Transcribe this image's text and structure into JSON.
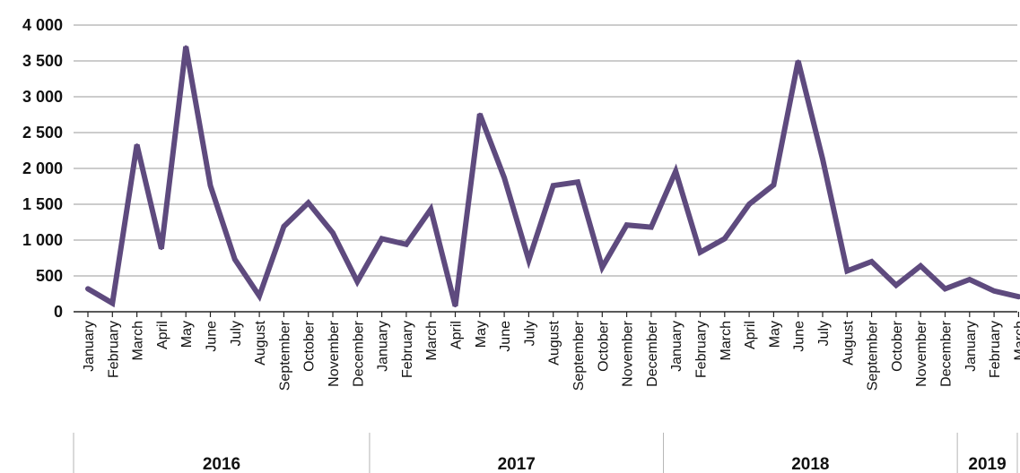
{
  "chart_data": {
    "type": "line",
    "title": "",
    "xlabel": "",
    "ylabel": "",
    "ylim": [
      0,
      4000
    ],
    "yticks": [
      0,
      500,
      1000,
      1500,
      2000,
      2500,
      3000,
      3500,
      4000
    ],
    "ytick_labels": [
      "0",
      "500",
      "1 000",
      "1 500",
      "2 000",
      "2 500",
      "3 000",
      "3 500",
      "4 000"
    ],
    "grid": true,
    "line_color": "#5e4a7e",
    "categories": [
      "January",
      "February",
      "March",
      "April",
      "May",
      "June",
      "July",
      "August",
      "September",
      "October",
      "November",
      "December",
      "January",
      "February",
      "March",
      "April",
      "May",
      "June",
      "July",
      "August",
      "September",
      "October",
      "November",
      "December",
      "January",
      "February",
      "March",
      "April",
      "May",
      "June",
      "July",
      "August",
      "September",
      "October",
      "November",
      "December",
      "January",
      "February",
      "March"
    ],
    "groups": [
      {
        "label": "2016",
        "count": 12
      },
      {
        "label": "2017",
        "count": 12
      },
      {
        "label": "2018",
        "count": 12
      },
      {
        "label": "2019",
        "count": 3
      }
    ],
    "series": [
      {
        "values": [
          320,
          120,
          2330,
          880,
          3700,
          1760,
          730,
          220,
          1190,
          1520,
          1100,
          420,
          1020,
          940,
          1430,
          80,
          2760,
          1870,
          720,
          1760,
          1810,
          620,
          1210,
          1180,
          1960,
          830,
          1020,
          1500,
          1770,
          3500,
          2130,
          570,
          700,
          370,
          640,
          320,
          450,
          290,
          210
        ]
      }
    ]
  }
}
